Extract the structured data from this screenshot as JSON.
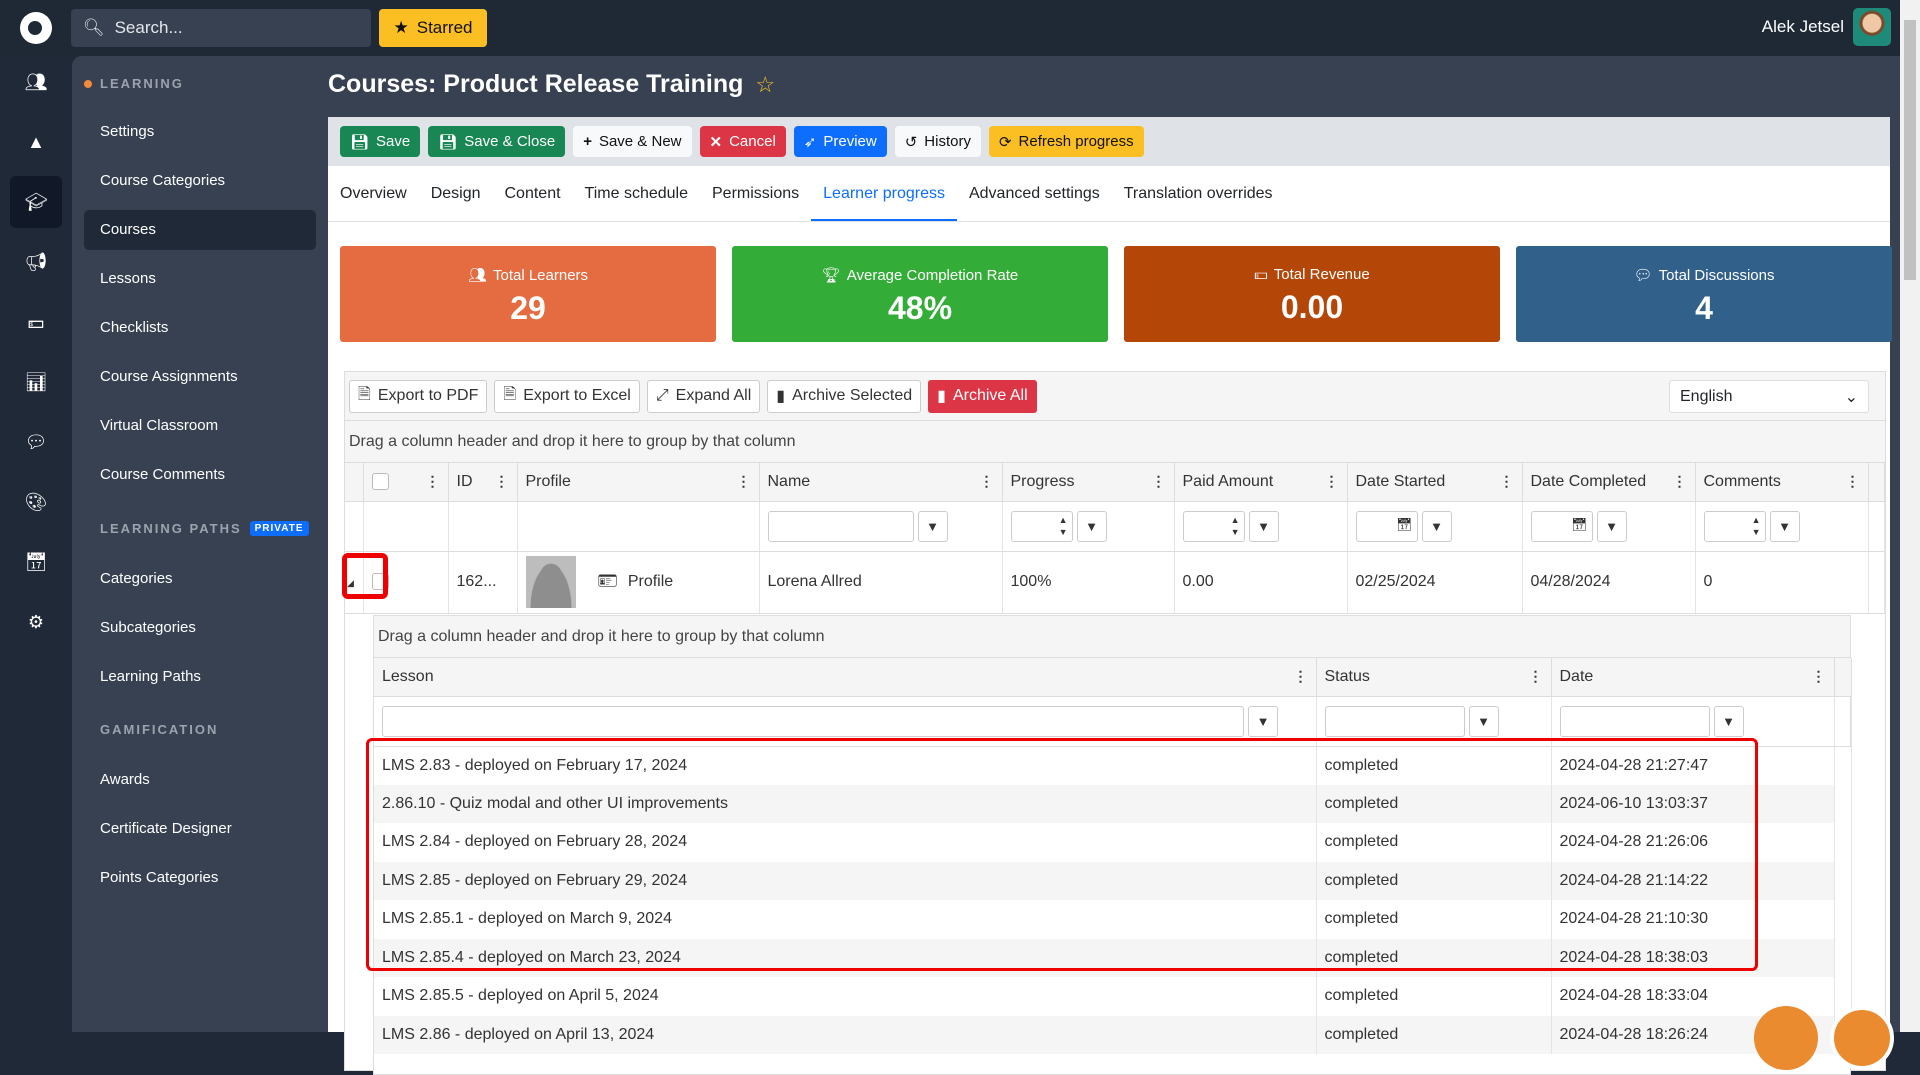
{
  "topbar": {
    "search_placeholder": "Search...",
    "starred_label": "Starred",
    "user_name": "Alek Jetsel"
  },
  "rail": [
    "users-icon",
    "shapes-icon",
    "graduation-cap-icon",
    "megaphone-icon",
    "money-icon",
    "chart-icon",
    "comment-icon",
    "palette-icon",
    "calendar-icon",
    "gear-icon"
  ],
  "sidebar": {
    "learning_heading": "LEARNING",
    "learning_items": [
      "Settings",
      "Course Categories",
      "Courses",
      "Lessons",
      "Checklists",
      "Course Assignments",
      "Virtual Classroom",
      "Course Comments"
    ],
    "active_item": "Courses",
    "paths_heading": "LEARNING PATHS",
    "paths_badge": "PRIVATE",
    "paths_items": [
      "Categories",
      "Subcategories",
      "Learning Paths"
    ],
    "gamification_heading": "GAMIFICATION",
    "gamification_items": [
      "Awards",
      "Certificate Designer",
      "Points Categories"
    ]
  },
  "page": {
    "title": "Courses: Product Release Training"
  },
  "toolbar": {
    "save": "Save",
    "save_close": "Save & Close",
    "save_new": "Save & New",
    "cancel": "Cancel",
    "preview": "Preview",
    "history": "History",
    "refresh": "Refresh progress"
  },
  "tabs": [
    "Overview",
    "Design",
    "Content",
    "Time schedule",
    "Permissions",
    "Learner progress",
    "Advanced settings",
    "Translation overrides"
  ],
  "active_tab": "Learner progress",
  "stats": [
    {
      "label": "Total Learners",
      "value": "29",
      "color": "#e56c40",
      "icon": "users-icon"
    },
    {
      "label": "Average Completion Rate",
      "value": "48%",
      "color": "#33ad37",
      "icon": "trophy-icon"
    },
    {
      "label": "Total Revenue",
      "value": "0.00",
      "color": "#b44608",
      "icon": "money-icon"
    },
    {
      "label": "Total Discussions",
      "value": "4",
      "color": "#31608b",
      "icon": "comments-icon"
    }
  ],
  "grid": {
    "buttons": {
      "pdf": "Export to PDF",
      "excel": "Export to Excel",
      "expand": "Expand All",
      "archive_sel": "Archive Selected",
      "archive_all": "Archive All"
    },
    "language": "English",
    "group_hint": "Drag a column header and drop it here to group by that column",
    "columns": [
      "ID",
      "Profile",
      "Name",
      "Progress",
      "Paid Amount",
      "Date Started",
      "Date Completed",
      "Comments"
    ],
    "rows": [
      {
        "id": "162...",
        "profile": "Profile",
        "name": "Lorena Allred",
        "progress": "100%",
        "paid": "0.00",
        "date_started": "02/25/2024",
        "date_completed": "04/28/2024",
        "comments": "0"
      }
    ]
  },
  "lessons": {
    "group_hint": "Drag a column header and drop it here to group by that column",
    "columns": [
      "Lesson",
      "Status",
      "Date"
    ],
    "rows": [
      [
        "LMS 2.83 - deployed on February 17, 2024",
        "completed",
        "2024-04-28 21:27:47"
      ],
      [
        "2.86.10 - Quiz modal and other UI improvements",
        "completed",
        "2024-06-10 13:03:37"
      ],
      [
        "LMS 2.84 - deployed on February 28, 2024",
        "completed",
        "2024-04-28 21:26:06"
      ],
      [
        "LMS 2.85 - deployed on February 29, 2024",
        "completed",
        "2024-04-28 21:14:22"
      ],
      [
        "LMS 2.85.1 - deployed on March 9, 2024",
        "completed",
        "2024-04-28 21:10:30"
      ],
      [
        "LMS 2.85.4 - deployed on March 23, 2024",
        "completed",
        "2024-04-28 18:38:03"
      ],
      [
        "LMS 2.85.5 - deployed on April 5, 2024",
        "completed",
        "2024-04-28 18:33:04"
      ],
      [
        "LMS 2.86 - deployed on April 13, 2024",
        "completed",
        "2024-04-28 18:26:24"
      ]
    ]
  }
}
